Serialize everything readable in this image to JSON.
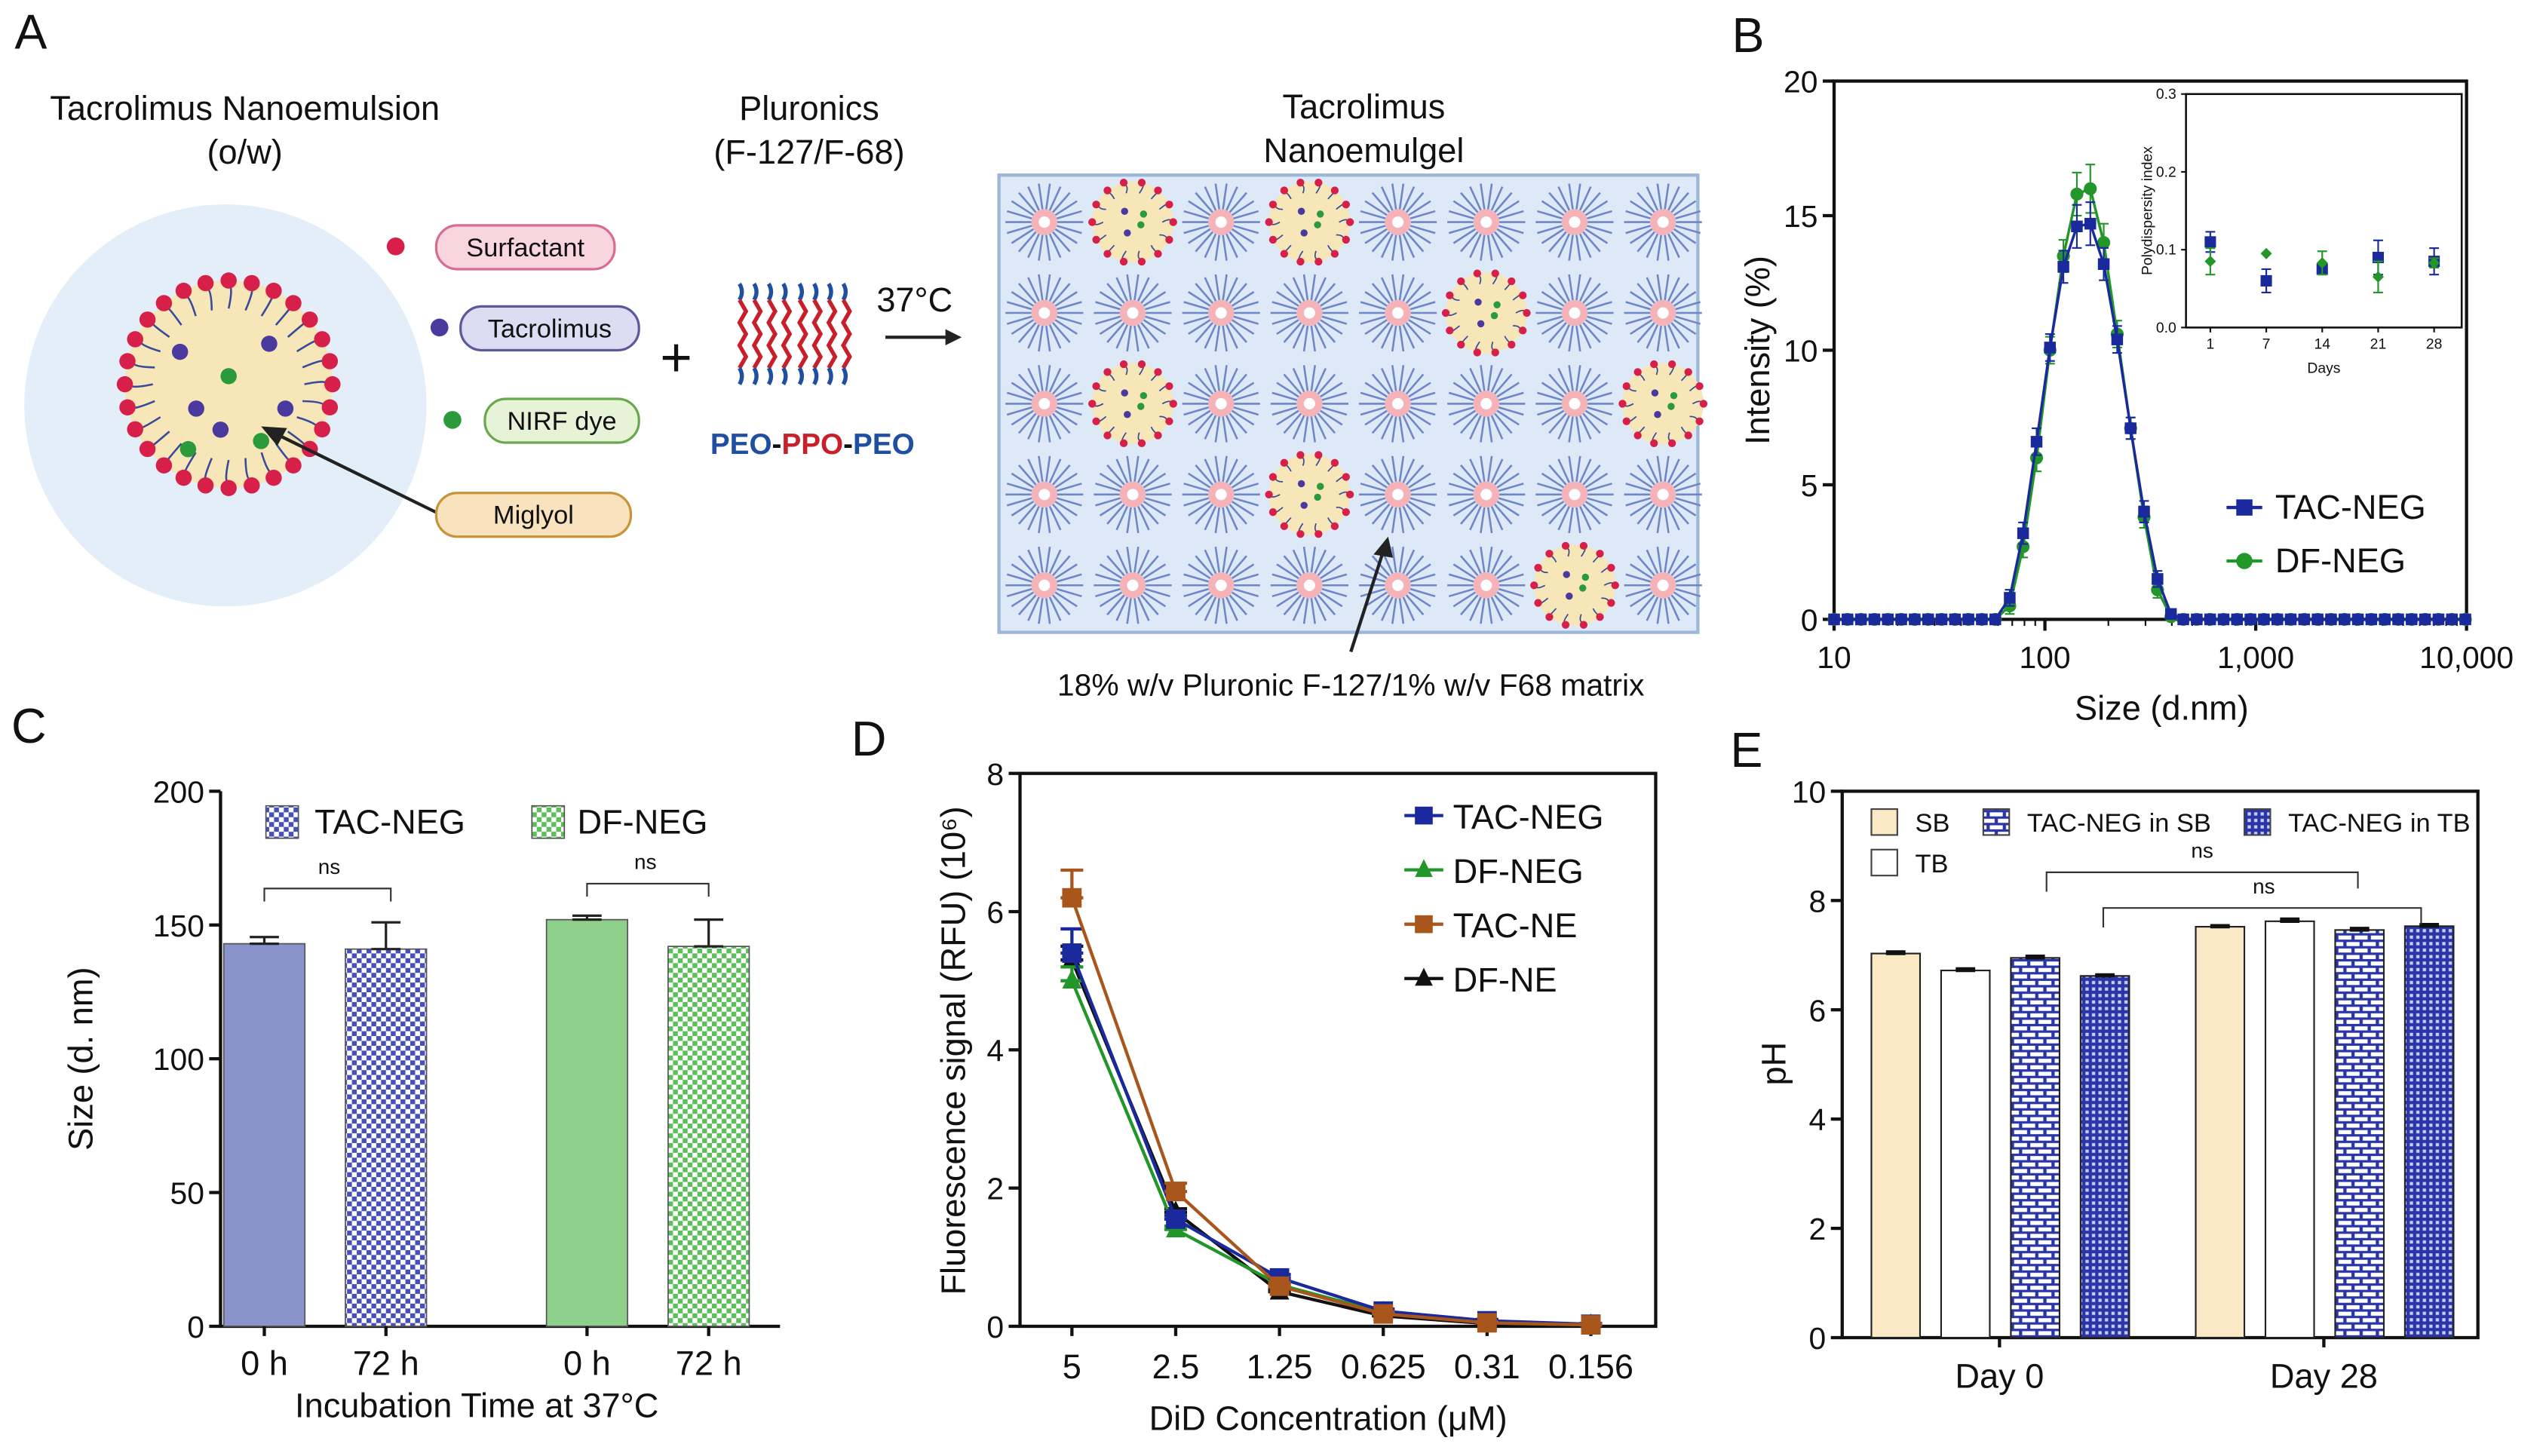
{
  "panel_labels": [
    "A",
    "B",
    "C",
    "D",
    "E"
  ],
  "schematic": {
    "nanoemulsion_title": "Tacrolimus Nanoemulsion",
    "nanoemulsion_subtitle": "(o/w)",
    "pluronics_title": "Pluronics",
    "pluronics_subtitle": "(F-127/F-68)",
    "nanoemulgel_title_1": "Tacrolimus",
    "nanoemulgel_title_2": "Nanoemulgel",
    "legend": [
      "Surfactant",
      "Tacrolimus",
      "NIRF dye",
      "Miglyol"
    ],
    "plus": "+",
    "temperature": "37°C",
    "copolymer": [
      "PEO",
      "-",
      "PPO",
      "-",
      "PEO"
    ],
    "matrix_caption": "18% w/v Pluronic F-127/1% w/v F68 matrix",
    "colors": {
      "surfactant": "#d6204a",
      "tacrolimus": "#4a3aa0",
      "nirf": "#2a9a3a",
      "miglyol": "#f7e6b8",
      "peo": "#1f4fa0",
      "ppo": "#c8202a"
    }
  },
  "chart_data": [
    {
      "panel": "B",
      "type": "line",
      "xlabel": "Size (d.nm)",
      "ylabel": "Intensity (%)",
      "xscale": "log",
      "xlim": [
        10,
        10000
      ],
      "ylim": [
        0,
        20
      ],
      "xticks": [
        "10",
        "100",
        "1,000",
        "10,000"
      ],
      "yticks": [
        "0",
        "5",
        "10",
        "15",
        "20"
      ],
      "other_bins_value": 0,
      "series": [
        {
          "name": "TAC-NEG",
          "color": "#1a2a9c",
          "marker": "square",
          "x": [
            68.1,
            78.8,
            91.3,
            105.7,
            122.4,
            141.8,
            164.2,
            190.1,
            220.2,
            255,
            295.3,
            342,
            396.1
          ],
          "y": [
            0.8,
            3.2,
            6.6,
            10.1,
            13.1,
            14.6,
            14.7,
            13.2,
            10.4,
            7.1,
            4.0,
            1.5,
            0.2
          ],
          "err": [
            0.3,
            0.4,
            0.5,
            0.5,
            0.6,
            0.8,
            0.8,
            0.6,
            0.5,
            0.4,
            0.4,
            0.3,
            0.1
          ]
        },
        {
          "name": "DF-NEG",
          "color": "#23962a",
          "marker": "circle",
          "x": [
            68.1,
            78.8,
            91.3,
            105.7,
            122.4,
            141.8,
            164.2,
            190.1,
            220.2,
            255,
            295.3,
            342,
            396.1
          ],
          "y": [
            0.5,
            2.7,
            6.0,
            10.0,
            13.5,
            15.8,
            16.0,
            14.0,
            10.6,
            7.1,
            3.8,
            1.1,
            0.1
          ],
          "err": [
            0.3,
            0.4,
            0.5,
            0.5,
            0.6,
            0.8,
            0.9,
            0.7,
            0.5,
            0.4,
            0.4,
            0.3,
            0.1
          ]
        }
      ],
      "legend_position": "center-right"
    },
    {
      "panel": "B-inset",
      "type": "scatter",
      "xlabel": "Days",
      "ylabel": "Polydispersity index",
      "categories": [
        "1",
        "7",
        "14",
        "21",
        "28"
      ],
      "ylim": [
        0,
        0.3
      ],
      "yticks": [
        "0.0",
        "0.1",
        "0.2",
        "0.3"
      ],
      "series": [
        {
          "name": "TAC-NEG",
          "color": "#1a2a9c",
          "marker": "square",
          "values": [
            0.11,
            0.06,
            0.075,
            0.09,
            0.085
          ],
          "err": [
            0.013,
            0.015,
            0.005,
            0.022,
            0.017
          ]
        },
        {
          "name": "DF-NEG",
          "color": "#23962a",
          "marker": "diamond",
          "values": [
            0.085,
            0.095,
            0.083,
            0.065,
            0.083
          ],
          "err": [
            0.017,
            0,
            0.015,
            0.02,
            0.006
          ]
        }
      ]
    },
    {
      "panel": "C",
      "type": "bar",
      "xlabel": "Incubation Time at 37°C",
      "ylabel": "Size (d. nm)",
      "ylim": [
        0,
        200
      ],
      "yticks": [
        "0",
        "50",
        "100",
        "150",
        "200"
      ],
      "categories": [
        "0 h",
        "72 h",
        "0 h",
        "72 h"
      ],
      "legend": [
        "TAC-NEG",
        "DF-NEG"
      ],
      "bars": [
        {
          "series": "TAC-NEG",
          "time": "0 h",
          "value": 143,
          "err": 2.5,
          "fill": "#8b93cc",
          "pattern": "solid"
        },
        {
          "series": "TAC-NEG",
          "time": "72 h",
          "value": 141,
          "err": 10,
          "fill": "#5a63c0",
          "pattern": "checker"
        },
        {
          "series": "DF-NEG",
          "time": "0 h",
          "value": 152,
          "err": 1.5,
          "fill": "#8fcf8c",
          "pattern": "solid"
        },
        {
          "series": "DF-NEG",
          "time": "72 h",
          "value": 142,
          "err": 10,
          "fill": "#6cc46a",
          "pattern": "checker"
        }
      ],
      "annotations": [
        "ns",
        "ns"
      ]
    },
    {
      "panel": "D",
      "type": "line",
      "xlabel": "DiD Concentration (μM)",
      "ylabel": "Fluorescence signal (RFU) (10⁶)",
      "ylim": [
        0,
        8
      ],
      "yticks": [
        "0",
        "2",
        "4",
        "6",
        "8"
      ],
      "categories": [
        "5",
        "2.5",
        "1.25",
        "0.625",
        "0.31",
        "0.156"
      ],
      "series": [
        {
          "name": "TAC-NEG",
          "color": "#1a2a9c",
          "marker": "square",
          "values": [
            5.4,
            1.55,
            0.7,
            0.22,
            0.08,
            0.03
          ],
          "err": [
            0.35,
            0.05,
            0.05,
            0.03,
            0.02,
            0.01
          ]
        },
        {
          "name": "DF-NEG",
          "color": "#23962a",
          "marker": "triangle",
          "values": [
            5.0,
            1.4,
            0.6,
            0.2,
            0.05,
            0.02
          ],
          "err": [
            0.2,
            0.05,
            0.04,
            0.02,
            0.01,
            0.01
          ]
        },
        {
          "name": "TAC-NE",
          "color": "#a8561c",
          "marker": "square",
          "values": [
            6.2,
            1.95,
            0.58,
            0.18,
            0.05,
            0.02
          ],
          "err": [
            0.4,
            0.12,
            0.05,
            0.03,
            0.01,
            0.01
          ]
        },
        {
          "name": "DF-NE",
          "color": "#111111",
          "marker": "triangle",
          "values": [
            5.3,
            1.65,
            0.5,
            0.15,
            0.04,
            0.01
          ],
          "err": [
            0.2,
            0.05,
            0.03,
            0.02,
            0.01,
            0.01
          ]
        }
      ],
      "legend_position": "top-right"
    },
    {
      "panel": "E",
      "type": "bar",
      "ylabel": "pH",
      "ylim": [
        0,
        10
      ],
      "yticks": [
        "0",
        "2",
        "4",
        "6",
        "8",
        "10"
      ],
      "categories": [
        "Day 0",
        "Day 28"
      ],
      "series": [
        {
          "name": "SB",
          "fill": "#fbe9c6",
          "pattern": "solid",
          "values": [
            7.03,
            7.52
          ],
          "err": [
            0.03,
            0.02
          ]
        },
        {
          "name": "TB",
          "fill": "#ffffff",
          "pattern": "solid",
          "values": [
            6.72,
            7.62
          ],
          "err": [
            0.03,
            0.04
          ]
        },
        {
          "name": "TAC-NEG in SB",
          "fill": "#2a35a8",
          "pattern": "brick",
          "values": [
            6.95,
            7.46
          ],
          "err": [
            0.03,
            0.03
          ]
        },
        {
          "name": "TAC-NEG in TB",
          "fill": "#2a35a8",
          "pattern": "grid",
          "values": [
            6.62,
            7.53
          ],
          "err": [
            0.02,
            0.03
          ]
        }
      ],
      "annotations": [
        "ns",
        "ns"
      ],
      "legend_position": "top"
    }
  ]
}
